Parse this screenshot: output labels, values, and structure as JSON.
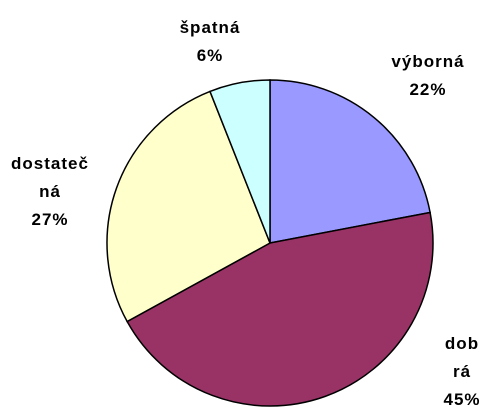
{
  "chart_data": {
    "type": "pie",
    "categories": [
      "výborná",
      "dobrá",
      "dostatečná",
      "špatná"
    ],
    "values": [
      22,
      45,
      27,
      6
    ],
    "value_labels": [
      "22%",
      "45%",
      "27%",
      "6%"
    ],
    "colors": [
      "#9999ff",
      "#993366",
      "#ffffcc",
      "#ccffff"
    ]
  }
}
